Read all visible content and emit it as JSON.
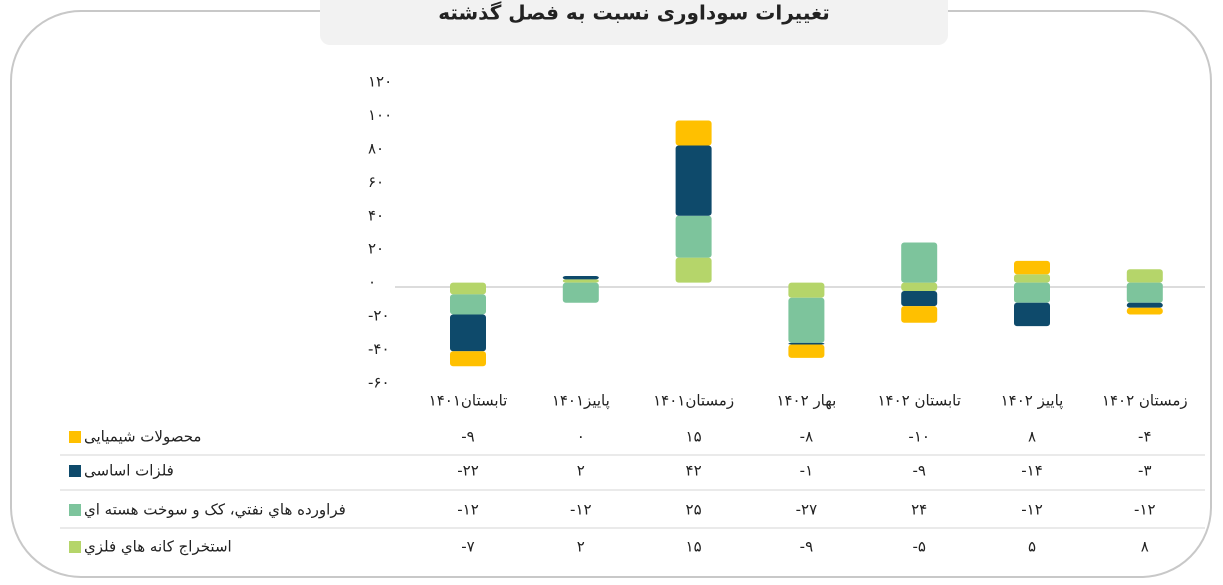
{
  "chart_data": {
    "type": "bar",
    "stacked": true,
    "title": "تغییرات سوداوری نسبت به فصل گذشته",
    "categories": [
      "تابستان۱۴۰۱",
      "پاییز۱۴۰۱",
      "زمستان۱۴۰۱",
      "بهار ۱۴۰۲",
      "تابستان ۱۴۰۲",
      "پاییز ۱۴۰۲",
      "زمستان ۱۴۰۲"
    ],
    "series": [
      {
        "name": "محصولات شیمیایی",
        "color": "#ffc000",
        "values": [
          -9,
          0,
          15,
          -8,
          -10,
          8,
          -4
        ],
        "value_labels": [
          "-۹",
          "۰",
          "۱۵",
          "-۸",
          "-۱۰",
          "۸",
          "-۴"
        ]
      },
      {
        "name": "فلزات اساسی",
        "color": "#0e4a6b",
        "values": [
          -22,
          2,
          42,
          -1,
          -9,
          -14,
          -3
        ],
        "value_labels": [
          "-۲۲",
          "۲",
          "۴۲",
          "-۱",
          "-۹",
          "-۱۴",
          "-۳"
        ]
      },
      {
        "name": "فراورده هاي نفتي، کک و سوخت هسته اي",
        "color": "#7dc49c",
        "values": [
          -12,
          -12,
          25,
          -27,
          24,
          -12,
          -12
        ],
        "value_labels": [
          "-۱۲",
          "-۱۲",
          "۲۵",
          "-۲۷",
          "۲۴",
          "-۱۲",
          "-۱۲"
        ]
      },
      {
        "name": "استخراج کانه هاي فلزي",
        "color": "#b5d56a",
        "values": [
          -7,
          2,
          15,
          -9,
          -5,
          5,
          8
        ],
        "value_labels": [
          "-۷",
          "۲",
          "۱۵",
          "-۹",
          "-۵",
          "۵",
          "۸"
        ]
      }
    ],
    "ylim": [
      -60,
      120
    ],
    "yticks": [
      {
        "value": 120,
        "label": "۱۲۰"
      },
      {
        "value": 100,
        "label": "۱۰۰"
      },
      {
        "value": 80,
        "label": "۸۰"
      },
      {
        "value": 60,
        "label": "۶۰"
      },
      {
        "value": 40,
        "label": "۴۰"
      },
      {
        "value": 20,
        "label": "۲۰"
      },
      {
        "value": 0,
        "label": "۰"
      },
      {
        "value": -20,
        "label": "-۲۰"
      },
      {
        "value": -40,
        "label": "-۴۰"
      },
      {
        "value": -60,
        "label": "-۶۰"
      }
    ]
  }
}
